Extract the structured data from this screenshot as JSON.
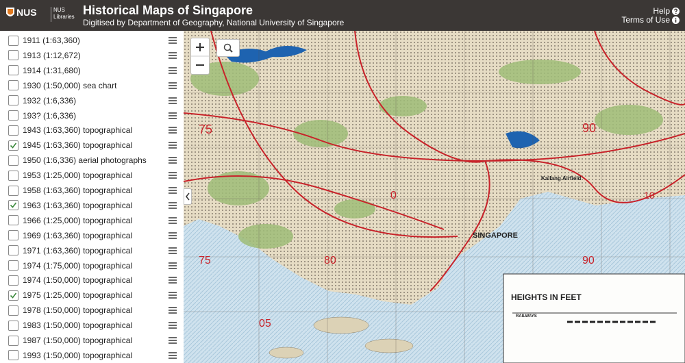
{
  "header": {
    "logo_text": "NUS",
    "logo_sub": "NUS Libraries",
    "title": "Historical Maps of Singapore",
    "subtitle": "Digitised by Department of Geography, National University of Singapore",
    "help": "Help",
    "terms": "Terms of Use"
  },
  "layers": [
    {
      "label": "1911 (1:63,360)",
      "checked": false
    },
    {
      "label": "1913 (1:12,672)",
      "checked": false
    },
    {
      "label": "1914 (1:31,680)",
      "checked": false
    },
    {
      "label": "1930 (1:50,000) sea chart",
      "checked": false
    },
    {
      "label": "1932 (1:6,336)",
      "checked": false
    },
    {
      "label": "193? (1:6,336)",
      "checked": false
    },
    {
      "label": "1943 (1:63,360) topographical",
      "checked": false
    },
    {
      "label": "1945 (1:63,360) topographical",
      "checked": true
    },
    {
      "label": "1950 (1:6,336) aerial photographs",
      "checked": false
    },
    {
      "label": "1953 (1:25,000) topographical",
      "checked": false
    },
    {
      "label": "1958 (1:63,360) topographical",
      "checked": false
    },
    {
      "label": "1963 (1:63,360) topographical",
      "checked": true
    },
    {
      "label": "1966 (1:25,000) topographical",
      "checked": false
    },
    {
      "label": "1969 (1:63,360) topographical",
      "checked": false
    },
    {
      "label": "1971 (1:63,360) topographical",
      "checked": false
    },
    {
      "label": "1974 (1:75,000) topographical",
      "checked": false
    },
    {
      "label": "1974 (1:50,000) topographical",
      "checked": false
    },
    {
      "label": "1975 (1:25,000) topographical",
      "checked": true
    },
    {
      "label": "1978 (1:50,000) topographical",
      "checked": false
    },
    {
      "label": "1983 (1:50,000) topographical",
      "checked": false
    },
    {
      "label": "1987 (1:50,000) topographical",
      "checked": false
    },
    {
      "label": "1993 (1:50,000) topographical",
      "checked": false
    }
  ],
  "map": {
    "labels": [
      "75",
      "90",
      "0",
      "10",
      "75",
      "80",
      "90",
      "05",
      "SINGAPORE",
      "Kallang Airfield",
      "HEIGHTS IN FEET",
      "RAILWAYS"
    ]
  }
}
